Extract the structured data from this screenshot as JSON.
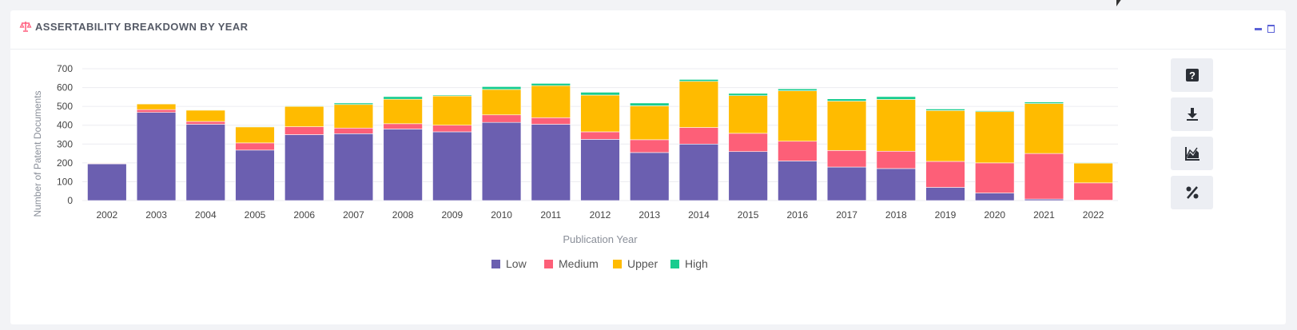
{
  "panel": {
    "title": "ASSERTABILITY BREAKDOWN BY YEAR",
    "icon": "scale-icon",
    "accent_color": "#5b62d6",
    "title_icon_color": "#ff5c7c"
  },
  "tools": [
    {
      "name": "help-button",
      "icon": "question-icon"
    },
    {
      "name": "download-button",
      "icon": "download-icon"
    },
    {
      "name": "trend-chart-button",
      "icon": "trend-chart-icon"
    },
    {
      "name": "percent-button",
      "icon": "percent-icon"
    }
  ],
  "chart_data": {
    "type": "bar",
    "stacked": true,
    "title": "",
    "xlabel": "Publication Year",
    "ylabel": "Number of Patent Documents",
    "ylim": [
      0,
      700
    ],
    "yticks": [
      0,
      100,
      200,
      300,
      400,
      500,
      600,
      700
    ],
    "grid": true,
    "legend_position": "bottom",
    "categories": [
      "2002",
      "2003",
      "2004",
      "2005",
      "2006",
      "2007",
      "2008",
      "2009",
      "2010",
      "2011",
      "2012",
      "2013",
      "2014",
      "2015",
      "2016",
      "2017",
      "2018",
      "2019",
      "2020",
      "2021",
      "2022"
    ],
    "series": [
      {
        "name": "Low",
        "color": "#6b5fb0",
        "values": [
          195,
          468,
          405,
          268,
          350,
          355,
          380,
          365,
          415,
          405,
          325,
          255,
          300,
          260,
          210,
          178,
          170,
          70,
          40,
          8,
          2
        ]
      },
      {
        "name": "Medium",
        "color": "#fd5f78",
        "values": [
          3,
          15,
          15,
          38,
          42,
          30,
          28,
          35,
          40,
          35,
          40,
          68,
          88,
          97,
          105,
          88,
          92,
          138,
          160,
          242,
          92
        ]
      },
      {
        "name": "Upper",
        "color": "#ffbb00",
        "values": [
          2,
          30,
          60,
          85,
          108,
          125,
          130,
          155,
          135,
          170,
          195,
          180,
          245,
          200,
          268,
          262,
          275,
          270,
          272,
          265,
          105
        ]
      },
      {
        "name": "High",
        "color": "#19cc8f",
        "values": [
          0,
          2,
          2,
          3,
          3,
          8,
          14,
          5,
          15,
          12,
          15,
          15,
          10,
          12,
          10,
          12,
          15,
          8,
          5,
          8,
          3
        ]
      }
    ]
  }
}
